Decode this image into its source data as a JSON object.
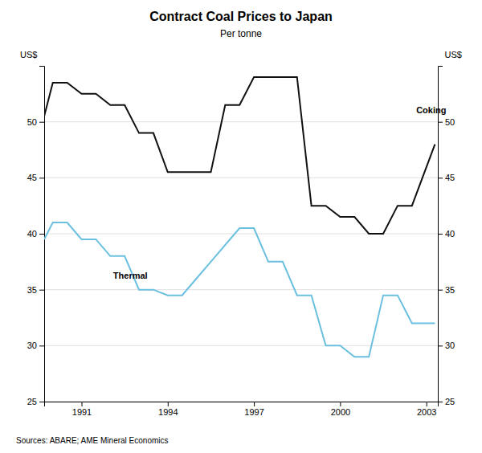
{
  "chart_data": {
    "type": "line",
    "title": "Contract Coal Prices to Japan",
    "subtitle": "Per tonne",
    "ylabel": "US$",
    "y2label": "US$",
    "source": "Sources: ABARE; AME Mineral Economics",
    "xlim": [
      1989.7,
      2003.4
    ],
    "xticks": [
      1991,
      1994,
      1997,
      2000,
      2003
    ],
    "ylim": [
      25,
      55
    ],
    "yticks": [
      25,
      30,
      35,
      40,
      45,
      50
    ],
    "y2lim": [
      25,
      55
    ],
    "y2ticks": [
      25,
      30,
      35,
      40,
      45,
      50
    ],
    "grid": true,
    "series": [
      {
        "color": "#111111",
        "x": [
          1989.7,
          1990.0,
          1990.5,
          1991.0,
          1991.5,
          1992.0,
          1992.5,
          1993.0,
          1993.5,
          1994.0,
          1994.5,
          1995.5,
          1996.0,
          1996.5,
          1997.0,
          1997.5,
          1998.5,
          1999.0,
          1999.5,
          2000.0,
          2000.5,
          2001.0,
          2001.5,
          2002.0,
          2002.5,
          2003.3
        ],
        "values": [
          50.5,
          53.5,
          53.5,
          52.5,
          52.5,
          51.5,
          51.5,
          49.0,
          49.0,
          45.5,
          45.5,
          45.5,
          51.5,
          51.5,
          54.0,
          54.0,
          54.0,
          42.5,
          42.5,
          41.5,
          41.5,
          40.0,
          40.0,
          42.5,
          42.5,
          48.0
        ]
      },
      {
        "color": "#6bbfdf",
        "x": [
          1989.7,
          1990.0,
          1990.5,
          1991.0,
          1991.5,
          1992.0,
          1992.5,
          1993.0,
          1993.5,
          1994.0,
          1994.5,
          1996.5,
          1997.0,
          1997.5,
          1998.0,
          1998.5,
          1999.0,
          1999.5,
          2000.0,
          2000.5,
          2001.0,
          2001.5,
          2002.0,
          2002.5,
          2003.3
        ],
        "values": [
          39.5,
          41.0,
          41.0,
          39.5,
          39.5,
          38.0,
          38.0,
          35.0,
          35.0,
          34.5,
          34.5,
          40.5,
          40.5,
          37.5,
          37.5,
          34.5,
          34.5,
          30.0,
          30.0,
          29.0,
          29.0,
          34.5,
          34.5,
          32.0,
          32.0
        ]
      }
    ],
    "annotations": [
      {
        "text": "Coking",
        "x": 2002.65,
        "y": 51.0
      },
      {
        "text": "Thermal",
        "x": 1992.1,
        "y": 36.2
      }
    ]
  }
}
